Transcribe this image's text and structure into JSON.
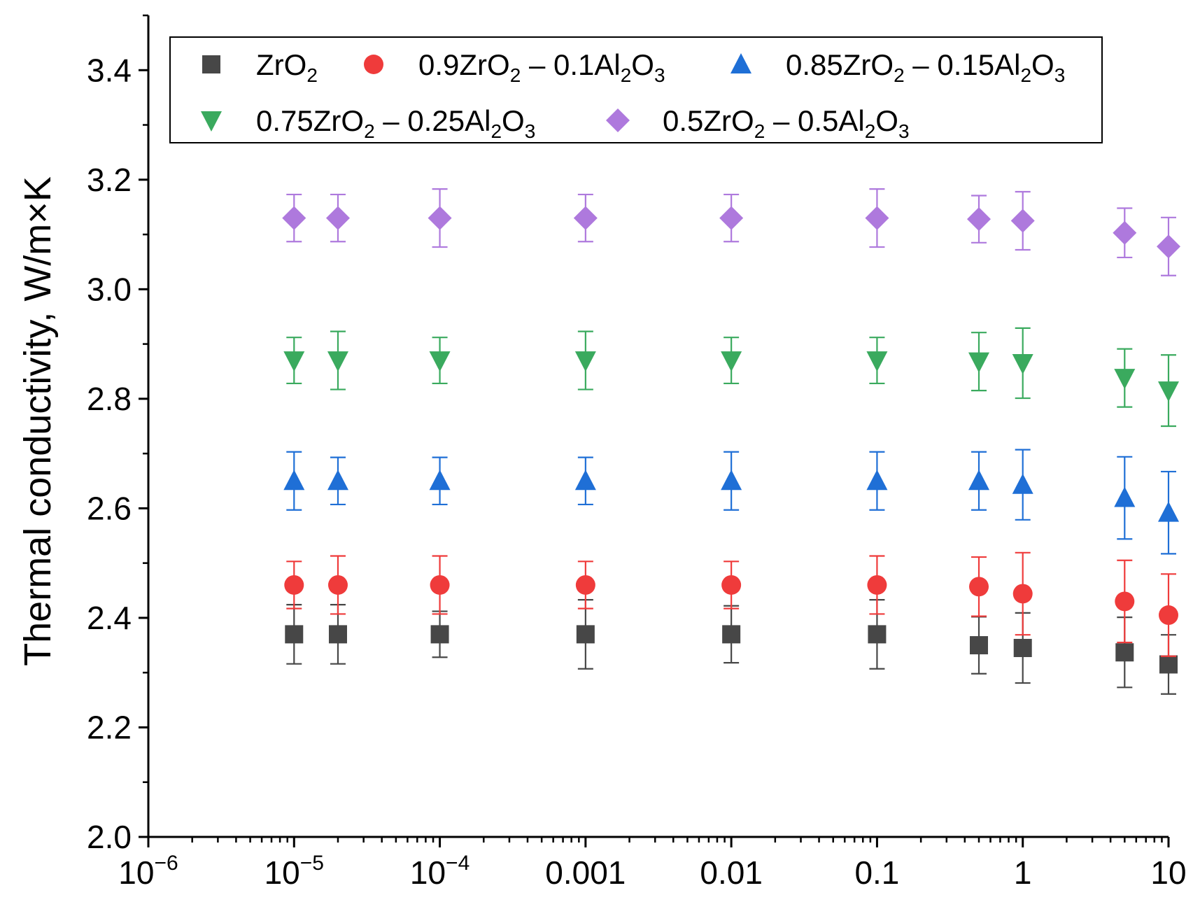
{
  "chart_data": {
    "type": "scatter",
    "title": "",
    "xlabel": "",
    "ylabel": "Thermal conductivity, W/m×K",
    "xscale": "log",
    "xlim": [
      1e-06,
      10
    ],
    "ylim": [
      2.0,
      3.5
    ],
    "x_tick_values": [
      1e-06,
      1e-05,
      0.0001,
      0.001,
      0.01,
      0.1,
      1,
      10
    ],
    "x_tick_labels": [
      {
        "base": "10",
        "exp": "−6"
      },
      {
        "base": "10",
        "exp": "−5"
      },
      {
        "base": "10",
        "exp": "−4"
      },
      {
        "base": "0.001",
        "exp": ""
      },
      {
        "base": "0.01",
        "exp": ""
      },
      {
        "base": "0.1",
        "exp": ""
      },
      {
        "base": "1",
        "exp": ""
      },
      {
        "base": "10",
        "exp": ""
      }
    ],
    "y_tick_values": [
      2.0,
      2.2,
      2.4,
      2.6,
      2.8,
      3.0,
      3.2,
      3.4
    ],
    "y_tick_labels": [
      "2.0",
      "2.2",
      "2.4",
      "2.6",
      "2.8",
      "3.0",
      "3.2",
      "3.4"
    ],
    "legend_position": "top",
    "x": [
      1e-05,
      2e-05,
      0.0001,
      0.001,
      0.01,
      0.1,
      0.5,
      1,
      5,
      10
    ],
    "series": [
      {
        "name": "ZrO2",
        "label_parts": [
          [
            "ZrO",
            "n"
          ],
          [
            "2",
            "s"
          ]
        ],
        "marker": "square",
        "color": "#474747",
        "values": [
          2.37,
          2.37,
          2.37,
          2.37,
          2.37,
          2.37,
          2.35,
          2.345,
          2.337,
          2.315
        ],
        "errors": [
          0.054,
          0.054,
          0.042,
          0.063,
          0.052,
          0.063,
          0.052,
          0.064,
          0.064,
          0.054
        ]
      },
      {
        "name": "0.9ZrO2 – 0.1Al2O3",
        "label_parts": [
          [
            "0.9ZrO",
            "n"
          ],
          [
            "2",
            "s"
          ],
          [
            " – 0.1Al",
            "n"
          ],
          [
            "2",
            "s"
          ],
          [
            "O",
            "n"
          ],
          [
            "3",
            "s"
          ]
        ],
        "marker": "circle",
        "color": "#ef3b3b",
        "values": [
          2.46,
          2.46,
          2.46,
          2.46,
          2.46,
          2.46,
          2.457,
          2.444,
          2.43,
          2.405
        ],
        "errors": [
          0.043,
          0.053,
          0.053,
          0.043,
          0.043,
          0.053,
          0.054,
          0.075,
          0.075,
          0.075
        ]
      },
      {
        "name": "0.85ZrO2 – 0.15Al2O3",
        "label_parts": [
          [
            "0.85ZrO",
            "n"
          ],
          [
            "2",
            "s"
          ],
          [
            " – 0.15Al",
            "n"
          ],
          [
            "2",
            "s"
          ],
          [
            "O",
            "n"
          ],
          [
            "3",
            "s"
          ]
        ],
        "marker": "triangle-up",
        "color": "#1f6fd6",
        "values": [
          2.65,
          2.65,
          2.65,
          2.65,
          2.65,
          2.65,
          2.65,
          2.643,
          2.619,
          2.592
        ],
        "errors": [
          0.053,
          0.043,
          0.043,
          0.043,
          0.053,
          0.053,
          0.053,
          0.064,
          0.075,
          0.075
        ]
      },
      {
        "name": "0.75ZrO2 – 0.25Al2O3",
        "label_parts": [
          [
            "0.75ZrO",
            "n"
          ],
          [
            "2",
            "s"
          ],
          [
            " – 0.25Al",
            "n"
          ],
          [
            "2",
            "s"
          ],
          [
            "O",
            "n"
          ],
          [
            "3",
            "s"
          ]
        ],
        "marker": "triangle-down",
        "color": "#3aaa5e",
        "values": [
          2.87,
          2.87,
          2.87,
          2.87,
          2.87,
          2.87,
          2.868,
          2.865,
          2.838,
          2.815
        ],
        "errors": [
          0.042,
          0.053,
          0.042,
          0.053,
          0.042,
          0.042,
          0.053,
          0.064,
          0.053,
          0.065
        ]
      },
      {
        "name": "0.5ZrO2 – 0.5Al2O3",
        "label_parts": [
          [
            "0.5ZrO",
            "n"
          ],
          [
            "2",
            "s"
          ],
          [
            " – 0.5Al",
            "n"
          ],
          [
            "2",
            "s"
          ],
          [
            "O",
            "n"
          ],
          [
            "3",
            "s"
          ]
        ],
        "marker": "diamond",
        "color": "#ae79dd",
        "values": [
          3.13,
          3.13,
          3.13,
          3.13,
          3.13,
          3.13,
          3.128,
          3.125,
          3.103,
          3.078
        ],
        "errors": [
          0.043,
          0.043,
          0.053,
          0.043,
          0.043,
          0.053,
          0.043,
          0.053,
          0.045,
          0.053
        ]
      }
    ]
  }
}
